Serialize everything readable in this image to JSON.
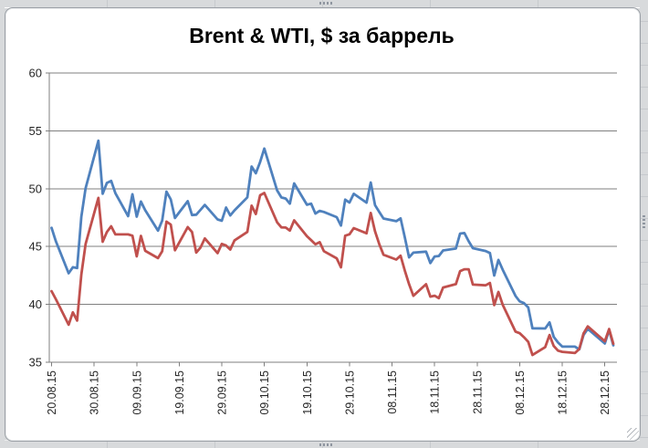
{
  "chart_data": {
    "type": "line",
    "title": "Brent & WTI, $ за баррель",
    "xlabel": "",
    "ylabel": "",
    "ylim": [
      35,
      60
    ],
    "y_ticks": [
      60,
      55,
      50,
      45,
      40,
      35
    ],
    "y_tick_labels": [
      "60",
      "55",
      "50",
      "45",
      "40",
      "35"
    ],
    "grid": "horizontal-major",
    "legend": "none",
    "axis_color": "#7f7f7f",
    "x_tick_labels": [
      "20.08.15",
      "30.08.15",
      "09.09.15",
      "19.09.15",
      "29.09.15",
      "09.10.15",
      "19.10.15",
      "29.10.15",
      "08.11.15",
      "18.11.15",
      "28.11.15",
      "08.12.15",
      "18.12.15",
      "28.12.15"
    ],
    "x": [
      "20.08.15",
      "21.08.15",
      "24.08.15",
      "25.08.15",
      "26.08.15",
      "27.08.15",
      "28.08.15",
      "31.08.15",
      "01.09.15",
      "02.09.15",
      "03.09.15",
      "04.09.15",
      "07.09.15",
      "08.09.15",
      "09.09.15",
      "10.09.15",
      "11.09.15",
      "14.09.15",
      "15.09.15",
      "16.09.15",
      "17.09.15",
      "18.09.15",
      "21.09.15",
      "22.09.15",
      "23.09.15",
      "24.09.15",
      "25.09.15",
      "28.09.15",
      "29.09.15",
      "30.09.15",
      "01.10.15",
      "02.10.15",
      "05.10.15",
      "06.10.15",
      "07.10.15",
      "08.10.15",
      "09.10.15",
      "12.10.15",
      "13.10.15",
      "14.10.15",
      "15.10.15",
      "16.10.15",
      "19.10.15",
      "20.10.15",
      "21.10.15",
      "22.10.15",
      "23.10.15",
      "26.10.15",
      "27.10.15",
      "28.10.15",
      "29.10.15",
      "30.10.15",
      "02.11.15",
      "03.11.15",
      "04.11.15",
      "05.11.15",
      "06.11.15",
      "09.11.15",
      "10.11.15",
      "11.11.15",
      "12.11.15",
      "13.11.15",
      "16.11.15",
      "17.11.15",
      "18.11.15",
      "19.11.15",
      "20.11.15",
      "23.11.15",
      "24.11.15",
      "25.11.15",
      "26.11.15",
      "27.11.15",
      "30.11.15",
      "01.12.15",
      "02.12.15",
      "03.12.15",
      "04.12.15",
      "07.12.15",
      "08.12.15",
      "09.12.15",
      "10.12.15",
      "11.12.15",
      "14.12.15",
      "15.12.15",
      "16.12.15",
      "17.12.15",
      "18.12.15",
      "21.12.15",
      "22.12.15",
      "23.12.15",
      "24.12.15",
      "28.12.15",
      "29.12.15",
      "30.12.15"
    ],
    "series": [
      {
        "name": "Brent",
        "color": "#4F81BD",
        "values": [
          46.62,
          45.46,
          42.69,
          43.21,
          43.14,
          47.56,
          50.05,
          54.15,
          49.56,
          50.5,
          50.68,
          49.61,
          47.63,
          49.52,
          47.58,
          48.89,
          48.14,
          46.37,
          47.24,
          49.75,
          49.08,
          47.47,
          48.92,
          47.72,
          47.75,
          48.17,
          48.6,
          47.34,
          47.23,
          48.37,
          47.69,
          48.13,
          49.25,
          51.92,
          51.33,
          52.3,
          53.47,
          49.86,
          49.24,
          49.15,
          48.71,
          50.46,
          48.61,
          48.71,
          47.85,
          48.08,
          47.99,
          47.54,
          46.81,
          49.05,
          48.8,
          49.56,
          48.79,
          50.54,
          48.58,
          47.98,
          47.42,
          47.19,
          47.44,
          45.81,
          44.06,
          44.47,
          44.56,
          43.57,
          44.14,
          44.18,
          44.66,
          44.83,
          46.12,
          46.17,
          45.46,
          44.86,
          44.61,
          44.44,
          42.49,
          43.84,
          43.0,
          40.73,
          40.26,
          40.11,
          39.73,
          37.93,
          37.92,
          38.45,
          37.19,
          36.7,
          36.35,
          36.35,
          36.11,
          37.36,
          37.89,
          36.62,
          37.79,
          36.46
        ]
      },
      {
        "name": "WTI",
        "color": "#C0504D",
        "values": [
          41.14,
          40.45,
          38.24,
          39.31,
          38.6,
          42.56,
          45.22,
          49.2,
          45.41,
          46.25,
          46.75,
          46.05,
          46.05,
          45.94,
          44.15,
          45.92,
          44.63,
          44.0,
          44.59,
          47.15,
          46.9,
          44.68,
          46.68,
          46.25,
          44.48,
          44.91,
          45.7,
          44.43,
          45.23,
          45.09,
          44.74,
          45.54,
          46.26,
          48.53,
          47.81,
          49.43,
          49.63,
          47.1,
          46.66,
          46.64,
          46.38,
          47.26,
          45.89,
          45.55,
          45.2,
          45.38,
          44.6,
          43.98,
          43.2,
          45.94,
          46.06,
          46.59,
          46.14,
          47.9,
          46.32,
          45.2,
          44.29,
          43.87,
          44.21,
          42.93,
          41.75,
          40.74,
          41.74,
          40.67,
          40.75,
          40.54,
          41.46,
          41.75,
          42.87,
          43.04,
          43.04,
          41.71,
          41.65,
          41.85,
          39.94,
          41.08,
          39.97,
          37.65,
          37.51,
          37.16,
          36.76,
          35.62,
          36.31,
          37.35,
          36.4,
          36.0,
          35.9,
          35.8,
          36.14,
          37.5,
          38.1,
          36.81,
          37.87,
          36.6
        ]
      }
    ]
  }
}
